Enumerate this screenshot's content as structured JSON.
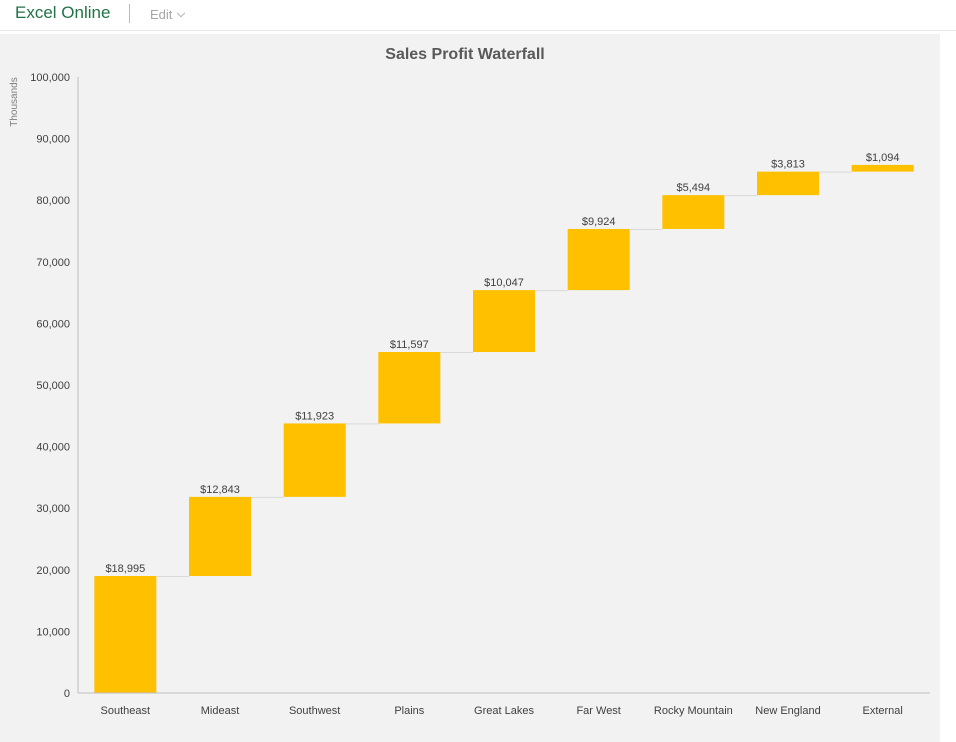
{
  "app": {
    "title": "Excel Online",
    "edit_label": "Edit"
  },
  "colors": {
    "bar": "#FFC000",
    "connector": "#D9D9D9",
    "background": "#F2F2F2",
    "axis": "#BFBFBF"
  },
  "chart_data": {
    "type": "bar",
    "subtype": "waterfall",
    "title": "Sales Profit Waterfall",
    "ylabel": "Thousands",
    "xlabel": "",
    "ylim": [
      0,
      100000
    ],
    "yticks": [
      0,
      10000,
      20000,
      30000,
      40000,
      50000,
      60000,
      70000,
      80000,
      90000,
      100000
    ],
    "ytick_labels": [
      "0",
      "10,000",
      "20,000",
      "30,000",
      "40,000",
      "50,000",
      "60,000",
      "70,000",
      "80,000",
      "90,000",
      "100,000"
    ],
    "categories": [
      "Southeast",
      "Mideast",
      "Southwest",
      "Plains",
      "Great Lakes",
      "Far West",
      "Rocky Mountain",
      "New England",
      "External"
    ],
    "values": [
      18995,
      12843,
      11923,
      11597,
      10047,
      9924,
      5494,
      3813,
      1094
    ],
    "data_labels": [
      "$18,995",
      "$12,843",
      "$11,923",
      "$11,597",
      "$10,047",
      "$9,924",
      "$5,494",
      "$3,813",
      "$1,094"
    ],
    "grid": false,
    "legend": "none"
  }
}
